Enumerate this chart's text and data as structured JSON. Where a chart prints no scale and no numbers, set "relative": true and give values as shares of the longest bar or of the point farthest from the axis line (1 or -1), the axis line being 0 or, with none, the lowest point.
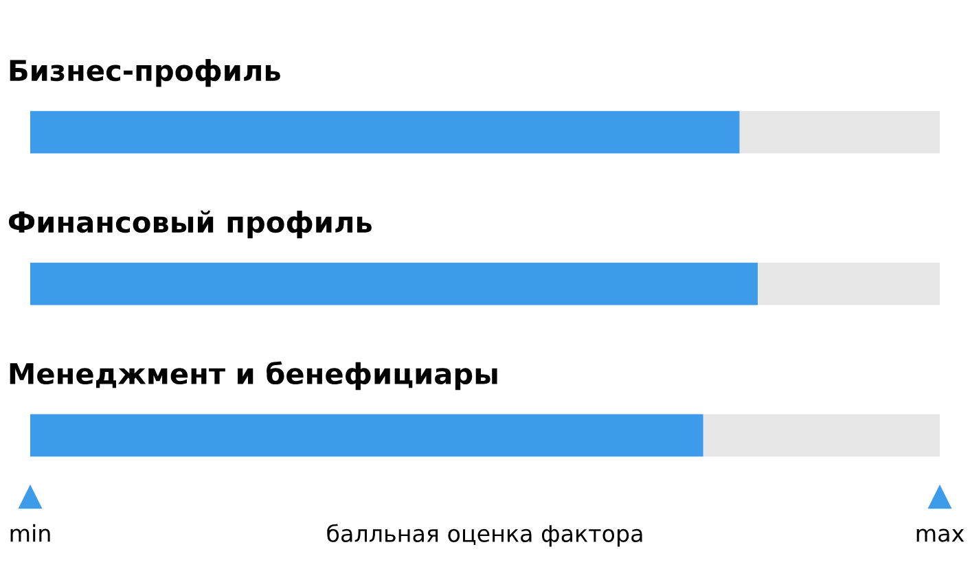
{
  "chart_data": {
    "type": "bar",
    "orientation": "horizontal",
    "stacked": true,
    "relative": true,
    "categories": [
      "Бизнес-профиль",
      "Финансовый профиль",
      "Менеджмент и бенефициары"
    ],
    "series": [
      {
        "color": "#3d9be9",
        "values": [
          0.78,
          0.8,
          0.74
        ]
      },
      {
        "color": "#e6e6e6",
        "values": [
          0.22,
          0.2,
          0.26
        ]
      }
    ],
    "annotations": [
      "min",
      "max"
    ],
    "xlabel": "балльная оценка фактора"
  }
}
